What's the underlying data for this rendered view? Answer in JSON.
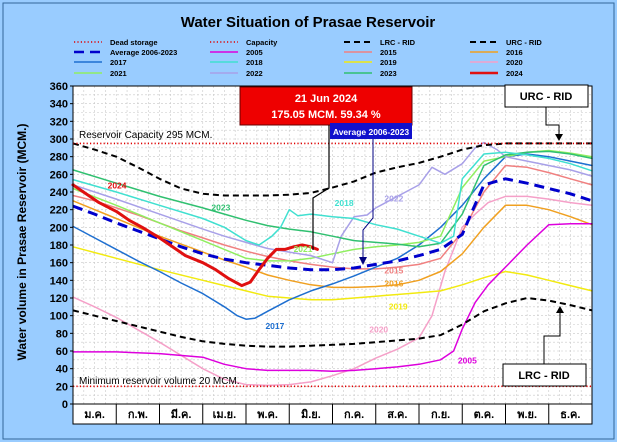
{
  "chart_data": {
    "type": "line",
    "title": "Water Situation of Prasae Reservoir",
    "ylabel": "Water volume in Prasae Reservoir (MCM.)",
    "xlabel": "",
    "ylim": [
      0,
      360
    ],
    "yticks": [
      0,
      20,
      40,
      60,
      80,
      100,
      120,
      140,
      160,
      180,
      200,
      220,
      240,
      260,
      280,
      300,
      320,
      340,
      360
    ],
    "categories": [
      "ม.ค.",
      "ก.พ.",
      "มี.ค.",
      "เม.ย.",
      "พ.ค.",
      "มิ.ย.",
      "ก.ค.",
      "ส.ค.",
      "ก.ย.",
      "ต.ค.",
      "พ.ย.",
      "ธ.ค."
    ],
    "legend": [
      {
        "key": "dead",
        "label": "Dead storage",
        "color": "#e00000",
        "dash": "1.2 2.2",
        "width": 1.6
      },
      {
        "key": "capacity",
        "label": "Capacity",
        "color": "#e00000",
        "dash": "1.2 2.2",
        "width": 1.6
      },
      {
        "key": "lrc",
        "label": "LRC - RID",
        "color": "#000000",
        "dash": "6 4",
        "width": 2
      },
      {
        "key": "urc",
        "label": "URC - RID",
        "color": "#000000",
        "dash": "6 4",
        "width": 2
      },
      {
        "key": "avg",
        "label": "Average 2006-2023",
        "color": "#0000cc",
        "dash": "10 6",
        "width": 3
      },
      {
        "key": "y2005",
        "label": "2005",
        "color": "#dd00dd",
        "width": 1.5
      },
      {
        "key": "y2015",
        "label": "2015",
        "color": "#f08080",
        "width": 1.5
      },
      {
        "key": "y2016",
        "label": "2016",
        "color": "#f0a020",
        "width": 1.5
      },
      {
        "key": "y2017",
        "label": "2017",
        "color": "#1e6fd0",
        "width": 1.5
      },
      {
        "key": "y2018",
        "label": "2018",
        "color": "#40e0d0",
        "width": 1.5
      },
      {
        "key": "y2019",
        "label": "2019",
        "color": "#f2ea10",
        "width": 1.5
      },
      {
        "key": "y2020",
        "label": "2020",
        "color": "#f5a0c8",
        "width": 1.5
      },
      {
        "key": "y2021",
        "label": "2021",
        "color": "#90ee60",
        "width": 1.5
      },
      {
        "key": "y2022",
        "label": "2022",
        "color": "#a8a0e8",
        "width": 1.5
      },
      {
        "key": "y2023",
        "label": "2023",
        "color": "#30c070",
        "width": 1.5
      },
      {
        "key": "y2024",
        "label": "2024",
        "color": "#e01010",
        "width": 3
      }
    ],
    "series": {
      "capacity": {
        "x": [
          0,
          12
        ],
        "y": [
          295,
          295
        ]
      },
      "dead": {
        "x": [
          0,
          12
        ],
        "y": [
          20,
          20
        ]
      },
      "urc": {
        "x": [
          0,
          0.5,
          1,
          1.5,
          2,
          2.5,
          3,
          3.5,
          4,
          4.5,
          5,
          5.5,
          6,
          6.5,
          7,
          7.5,
          8,
          8.5,
          9,
          9.5,
          10,
          10.5,
          11,
          11.5,
          12
        ],
        "y": [
          295,
          288,
          280,
          268,
          255,
          244,
          238,
          236,
          236,
          236,
          237,
          239,
          245,
          252,
          262,
          268,
          273,
          280,
          288,
          293,
          295,
          295,
          295,
          295,
          295
        ]
      },
      "lrc": {
        "x": [
          0,
          0.5,
          1,
          1.5,
          2,
          2.5,
          3,
          3.5,
          4,
          4.5,
          5,
          5.5,
          6,
          6.5,
          7,
          7.5,
          8,
          8.5,
          9,
          9.5,
          10,
          10.5,
          11,
          11.5,
          12
        ],
        "y": [
          106,
          100,
          94,
          88,
          82,
          76,
          71,
          68,
          66,
          65,
          65,
          66,
          67,
          68,
          70,
          72,
          74,
          78,
          90,
          105,
          114,
          120,
          117,
          112,
          106
        ]
      },
      "avg": {
        "x": [
          0,
          0.5,
          1,
          1.5,
          2,
          2.5,
          3,
          3.5,
          4,
          4.5,
          5,
          5.5,
          6,
          6.5,
          7,
          7.5,
          8,
          8.5,
          9,
          9.2,
          9.5,
          10,
          10.5,
          11,
          11.5,
          12
        ],
        "y": [
          224,
          215,
          205,
          196,
          187,
          178,
          170,
          164,
          160,
          157,
          154,
          152,
          152,
          154,
          158,
          162,
          168,
          175,
          192,
          215,
          248,
          255,
          250,
          244,
          238,
          230
        ]
      },
      "y2005": {
        "x": [
          0,
          1,
          2,
          3,
          3.5,
          4,
          4.5,
          5,
          5.5,
          6,
          6.5,
          7,
          7.5,
          8,
          8.5,
          8.8,
          9,
          9.3,
          9.6,
          10,
          10.5,
          11,
          11.5,
          12
        ],
        "y": [
          59,
          59,
          57,
          53,
          45,
          40,
          38,
          38,
          38,
          37,
          38,
          40,
          42,
          45,
          50,
          60,
          85,
          115,
          135,
          155,
          180,
          203,
          204,
          204
        ]
      },
      "y2015": {
        "x": [
          0,
          0.5,
          1,
          1.5,
          2,
          2.5,
          3,
          3.5,
          4,
          4.5,
          5,
          5.5,
          6,
          6.5,
          7,
          7.5,
          8,
          8.5,
          9,
          9.5,
          10,
          10.5,
          11,
          11.5,
          12
        ],
        "y": [
          236,
          230,
          222,
          214,
          205,
          196,
          188,
          180,
          173,
          167,
          162,
          158,
          155,
          153,
          153,
          155,
          158,
          165,
          195,
          240,
          270,
          268,
          262,
          255,
          248
        ]
      },
      "y2016": {
        "x": [
          0,
          1,
          2,
          3,
          3.5,
          4,
          4.5,
          5,
          5.5,
          6,
          6.5,
          7,
          7.5,
          8,
          8.5,
          9,
          9.5,
          10,
          10.5,
          11,
          11.5,
          12
        ],
        "y": [
          230,
          210,
          190,
          172,
          163,
          155,
          146,
          140,
          135,
          132,
          132,
          133,
          135,
          140,
          150,
          170,
          200,
          225,
          225,
          220,
          212,
          203
        ]
      },
      "y2017": {
        "x": [
          0,
          0.5,
          1,
          1.5,
          2,
          2.5,
          3,
          3.5,
          3.8,
          4,
          4.2,
          4.5,
          5,
          5.5,
          6,
          6.5,
          7,
          7.5,
          8,
          8.5,
          9,
          9.5,
          10,
          10.5,
          11,
          11.5,
          12
        ],
        "y": [
          201,
          188,
          175,
          162,
          150,
          137,
          125,
          110,
          100,
          96,
          97,
          105,
          118,
          128,
          136,
          145,
          155,
          165,
          180,
          200,
          225,
          255,
          280,
          283,
          280,
          275,
          270
        ]
      },
      "y2018": {
        "x": [
          0,
          1,
          2,
          3,
          3.5,
          4,
          4.3,
          4.6,
          4.8,
          5,
          5.2,
          5.5,
          6,
          6.5,
          7,
          7.5,
          8,
          8.5,
          8.8,
          9,
          9.5,
          10,
          10.5,
          11,
          11.5,
          12
        ],
        "y": [
          254,
          240,
          225,
          210,
          200,
          185,
          180,
          190,
          200,
          220,
          213,
          215,
          212,
          210,
          203,
          198,
          190,
          182,
          190,
          255,
          283,
          285,
          282,
          278,
          272,
          264
        ]
      },
      "y2019": {
        "x": [
          0,
          1,
          2,
          3,
          3.5,
          4,
          4.5,
          5,
          5.5,
          6,
          6.5,
          7,
          7.5,
          8,
          8.5,
          9,
          9.5,
          10,
          10.5,
          11,
          11.5,
          12
        ],
        "y": [
          178,
          165,
          152,
          140,
          134,
          128,
          122,
          120,
          118,
          118,
          120,
          122,
          124,
          126,
          128,
          135,
          143,
          150,
          146,
          140,
          134,
          128
        ]
      },
      "y2020": {
        "x": [
          0,
          0.5,
          1,
          1.5,
          2,
          2.5,
          3,
          3.5,
          4,
          4.5,
          5,
          5.5,
          6,
          6.5,
          7,
          7.5,
          8,
          8.3,
          8.6,
          9,
          9.3,
          9.6,
          10,
          10.5,
          11,
          11.5,
          12
        ],
        "y": [
          121,
          110,
          98,
          84,
          70,
          55,
          40,
          28,
          22,
          21,
          22,
          25,
          32,
          40,
          52,
          62,
          75,
          100,
          150,
          200,
          215,
          228,
          235,
          235,
          232,
          228,
          225
        ]
      },
      "y2021": {
        "x": [
          0,
          1,
          2,
          3,
          3.5,
          4,
          4.5,
          5,
          5.5,
          6,
          6.5,
          7,
          7.5,
          8,
          8.5,
          9,
          9.5,
          10,
          10.5,
          11,
          11.5,
          12
        ],
        "y": [
          244,
          225,
          205,
          185,
          175,
          165,
          162,
          162,
          165,
          170,
          175,
          178,
          180,
          183,
          190,
          245,
          275,
          280,
          285,
          287,
          284,
          280
        ]
      },
      "y2022": {
        "x": [
          0,
          1,
          2,
          3,
          3.5,
          4,
          4.5,
          5,
          5.5,
          6,
          6.2,
          6.5,
          6.8,
          7,
          7.5,
          8,
          8.3,
          8.6,
          9,
          9.3,
          9.5,
          9.8,
          10,
          10.5,
          11,
          11.5,
          12
        ],
        "y": [
          248,
          232,
          215,
          198,
          190,
          183,
          176,
          172,
          168,
          160,
          190,
          212,
          214,
          222,
          235,
          248,
          268,
          260,
          272,
          290,
          296,
          288,
          280,
          275,
          270,
          265,
          258
        ]
      },
      "y2023": {
        "x": [
          0,
          1,
          2,
          3,
          3.5,
          4,
          4.5,
          5,
          5.5,
          6,
          6.5,
          7,
          7.5,
          8,
          8.5,
          9,
          9.5,
          10,
          10.5,
          11,
          11.5,
          12
        ],
        "y": [
          265,
          250,
          235,
          222,
          215,
          208,
          202,
          198,
          195,
          190,
          185,
          183,
          181,
          178,
          182,
          215,
          270,
          282,
          285,
          286,
          283,
          278
        ]
      },
      "y2024": {
        "x": [
          0,
          0.3,
          0.6,
          1,
          1.3,
          1.6,
          2,
          2.3,
          2.6,
          3,
          3.3,
          3.6,
          3.9,
          4.1,
          4.3,
          4.5,
          4.7,
          4.9,
          5.1,
          5.3,
          5.5,
          5.65
        ],
        "y": [
          248,
          238,
          228,
          218,
          208,
          200,
          188,
          178,
          168,
          160,
          152,
          142,
          134,
          138,
          152,
          165,
          175,
          175,
          178,
          180,
          178,
          175
        ]
      }
    },
    "series_labels": [
      {
        "key": "y2024",
        "text": "2024",
        "x": 0.8,
        "y": 244
      },
      {
        "key": "y2023",
        "text": "2023",
        "x": 3.2,
        "y": 219
      },
      {
        "key": "y2018",
        "text": "2018",
        "x": 6.05,
        "y": 224
      },
      {
        "key": "y2022",
        "text": "2022",
        "x": 7.2,
        "y": 229
      },
      {
        "key": "y2021",
        "text": "2021",
        "x": 5.1,
        "y": 172
      },
      {
        "key": "y2015",
        "text": "2015",
        "x": 7.2,
        "y": 148
      },
      {
        "key": "y2016",
        "text": "2016",
        "x": 7.2,
        "y": 133
      },
      {
        "key": "y2019",
        "text": "2019",
        "x": 7.3,
        "y": 107
      },
      {
        "key": "y2017",
        "text": "2017",
        "x": 4.45,
        "y": 85
      },
      {
        "key": "y2020",
        "text": "2020",
        "x": 6.85,
        "y": 81
      },
      {
        "key": "y2005",
        "text": "2005",
        "x": 8.9,
        "y": 46
      }
    ],
    "annotations": {
      "current_date": "21 Jun 2024",
      "current_value": "175.05 MCM. 59.34 %",
      "average_label": "Average 2006-2023",
      "urc_box": "URC - RID",
      "lrc_box": "LRC - RID",
      "capacity_text": "Reservoir Capacity 295 MCM.",
      "minimum_text": "Minimum reservoir volume 20 MCM."
    },
    "colors": {
      "frame_bg": "#99ccff",
      "plot_bg": "#ffffff",
      "grid": "#c8c8c8",
      "current_box": "#ee0000",
      "average_box": "#1010cc"
    }
  }
}
